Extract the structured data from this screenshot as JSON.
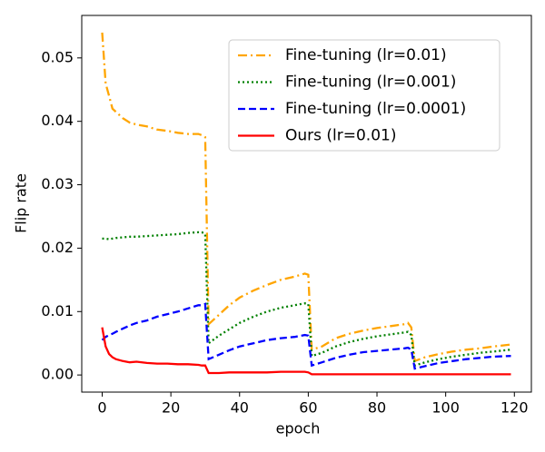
{
  "chart_data": {
    "type": "line",
    "xlabel": "epoch",
    "ylabel": "Flip rate",
    "x": [
      0,
      1,
      2,
      3,
      4,
      6,
      8,
      10,
      13,
      16,
      19,
      22,
      25,
      28,
      29,
      30,
      31,
      34,
      37,
      40,
      44,
      48,
      52,
      56,
      59,
      60,
      61,
      64,
      68,
      72,
      76,
      80,
      84,
      88,
      89,
      90,
      91,
      94,
      98,
      102,
      106,
      110,
      114,
      119
    ],
    "series": [
      {
        "name": "Fine-tuning (lr=0.01)",
        "color": "#ffa500",
        "linestyle": "dashdot",
        "values": [
          0.054,
          0.046,
          0.044,
          0.042,
          0.0415,
          0.0405,
          0.0398,
          0.0395,
          0.0392,
          0.0387,
          0.0385,
          0.0382,
          0.038,
          0.038,
          0.0378,
          0.0375,
          0.008,
          0.0095,
          0.011,
          0.0122,
          0.0133,
          0.0142,
          0.015,
          0.0155,
          0.016,
          0.0158,
          0.004,
          0.0045,
          0.0058,
          0.0065,
          0.007,
          0.0074,
          0.0077,
          0.008,
          0.0082,
          0.0075,
          0.0022,
          0.0028,
          0.0033,
          0.0037,
          0.004,
          0.0042,
          0.0045,
          0.0048
        ]
      },
      {
        "name": "Fine-tuning (lr=0.001)",
        "color": "#008000",
        "linestyle": "dotted",
        "values": [
          0.0215,
          0.0215,
          0.0214,
          0.0215,
          0.0216,
          0.0217,
          0.0218,
          0.0218,
          0.0219,
          0.022,
          0.0221,
          0.0222,
          0.0224,
          0.0225,
          0.0225,
          0.0222,
          0.005,
          0.0062,
          0.0072,
          0.0082,
          0.0092,
          0.01,
          0.0106,
          0.011,
          0.0113,
          0.0112,
          0.003,
          0.0035,
          0.0045,
          0.0052,
          0.0057,
          0.0061,
          0.0064,
          0.0067,
          0.0068,
          0.0063,
          0.0015,
          0.002,
          0.0025,
          0.0029,
          0.0032,
          0.0035,
          0.0037,
          0.004
        ]
      },
      {
        "name": "Fine-tuning (lr=0.0001)",
        "color": "#0000ff",
        "linestyle": "dashed",
        "values": [
          0.0055,
          0.006,
          0.0063,
          0.0065,
          0.0068,
          0.0073,
          0.0078,
          0.0082,
          0.0086,
          0.0092,
          0.0096,
          0.01,
          0.0105,
          0.011,
          0.011,
          0.0112,
          0.0025,
          0.0032,
          0.0039,
          0.0045,
          0.005,
          0.0055,
          0.0058,
          0.006,
          0.0063,
          0.0062,
          0.0015,
          0.002,
          0.0027,
          0.0032,
          0.0036,
          0.0038,
          0.004,
          0.0042,
          0.0043,
          0.004,
          0.001,
          0.0014,
          0.0019,
          0.0022,
          0.0025,
          0.0027,
          0.0029,
          0.003
        ]
      },
      {
        "name": "Ours (lr=0.01)",
        "color": "#ff0000",
        "linestyle": "solid",
        "values": [
          0.0075,
          0.0045,
          0.0033,
          0.0028,
          0.0025,
          0.0022,
          0.002,
          0.0021,
          0.0019,
          0.0018,
          0.0018,
          0.0017,
          0.0017,
          0.0016,
          0.0015,
          0.0015,
          0.0003,
          0.0003,
          0.0004,
          0.0004,
          0.0004,
          0.0004,
          0.0005,
          0.0005,
          0.0005,
          0.0004,
          0.0001,
          0.0001,
          0.0001,
          0.0001,
          0.0001,
          0.0001,
          0.0001,
          0.0001,
          0.0001,
          0.0001,
          0.0001,
          0.0001,
          0.0001,
          0.0001,
          0.0001,
          0.0001,
          0.0001,
          0.0001
        ]
      }
    ],
    "xlim": [
      -5.95,
      124.95
    ],
    "xticks": [
      0,
      20,
      40,
      60,
      80,
      100,
      120
    ],
    "ylim": [
      -0.0027,
      0.0567
    ],
    "yticks": [
      {
        "value": 0,
        "label": "0.00"
      },
      0.01,
      0.02,
      0.03,
      0.04,
      0.05
    ],
    "grid": false,
    "legend": "upper right"
  }
}
